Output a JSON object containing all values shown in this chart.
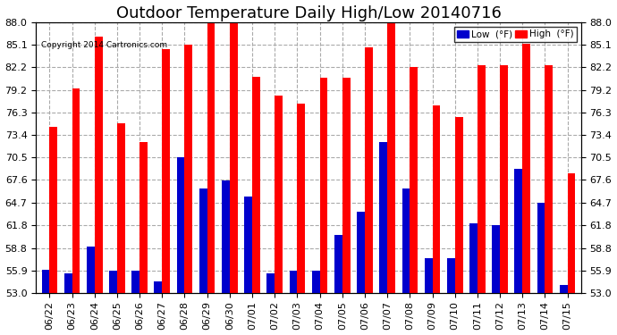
{
  "title": "Outdoor Temperature Daily High/Low 20140716",
  "copyright": "Copyright 2014 Cartronics.com",
  "categories": [
    "06/22",
    "06/23",
    "06/24",
    "06/25",
    "06/26",
    "06/27",
    "06/28",
    "06/29",
    "06/30",
    "07/01",
    "07/02",
    "07/03",
    "07/04",
    "07/05",
    "07/06",
    "07/07",
    "07/08",
    "07/09",
    "07/10",
    "07/11",
    "07/12",
    "07/13",
    "07/14",
    "07/15"
  ],
  "high": [
    74.5,
    79.5,
    86.2,
    75.0,
    72.5,
    84.5,
    85.1,
    87.9,
    88.0,
    81.0,
    78.5,
    77.5,
    80.8,
    80.8,
    84.8,
    88.0,
    82.2,
    77.2,
    75.8,
    82.5,
    82.5,
    85.2,
    82.5,
    68.5
  ],
  "low": [
    56.0,
    55.5,
    59.0,
    55.9,
    55.9,
    54.5,
    70.5,
    66.5,
    67.5,
    65.5,
    55.5,
    55.9,
    55.9,
    60.5,
    63.5,
    72.5,
    66.5,
    57.5,
    57.5,
    62.0,
    61.8,
    69.0,
    64.7,
    54.0
  ],
  "base": 53.0,
  "bar_width": 0.35,
  "ylim_min": 53.0,
  "ylim_max": 88.0,
  "yticks": [
    53.0,
    55.9,
    58.8,
    61.8,
    64.7,
    67.6,
    70.5,
    73.4,
    76.3,
    79.2,
    82.2,
    85.1,
    88.0
  ],
  "high_color": "#ff0000",
  "low_color": "#0000cc",
  "bg_color": "#ffffff",
  "grid_color": "#aaaaaa",
  "title_fontsize": 13,
  "tick_fontsize": 8,
  "legend_low_label": "Low  (°F)",
  "legend_high_label": "High  (°F)"
}
